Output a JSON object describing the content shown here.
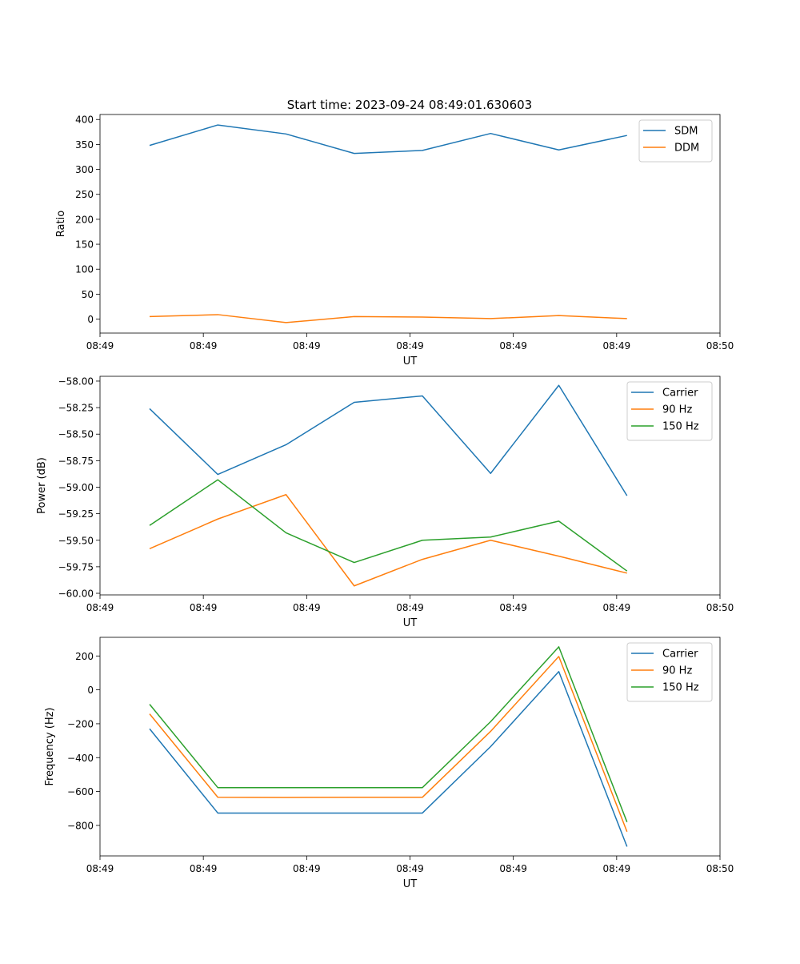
{
  "figure": {
    "title": "Start time: 2023-09-24 08:49:01.630603"
  },
  "chart_data": [
    {
      "type": "line",
      "xlabel": "UT",
      "ylabel": "Ratio",
      "xlim": [
        0,
        6
      ],
      "ylim": [
        -28,
        410
      ],
      "x": [
        0.48,
        1.14,
        1.8,
        2.46,
        3.12,
        3.78,
        4.44,
        5.1
      ],
      "xticks": [
        0,
        1,
        2,
        3,
        4,
        5,
        6
      ],
      "xtick_labels": [
        "08:49",
        "08:49",
        "08:49",
        "08:49",
        "08:49",
        "08:49",
        "08:50"
      ],
      "yticks": [
        0,
        50,
        100,
        150,
        200,
        250,
        300,
        350,
        400
      ],
      "ytick_labels": [
        "0",
        "50",
        "100",
        "150",
        "200",
        "250",
        "300",
        "350",
        "400"
      ],
      "legend_position": "top-right",
      "series": [
        {
          "name": "SDM",
          "color": "#1f77b4",
          "values": [
            348,
            389,
            371,
            332,
            338,
            372,
            339,
            368
          ]
        },
        {
          "name": "DDM",
          "color": "#ff7f0e",
          "values": [
            5,
            9,
            -7,
            5,
            4,
            1,
            7,
            1
          ]
        }
      ]
    },
    {
      "type": "line",
      "xlabel": "UT",
      "ylabel": "Power (dB)",
      "xlim": [
        0,
        6
      ],
      "ylim": [
        -60.015,
        -57.955
      ],
      "x": [
        0.48,
        1.14,
        1.8,
        2.46,
        3.12,
        3.78,
        4.44,
        5.1
      ],
      "xticks": [
        0,
        1,
        2,
        3,
        4,
        5,
        6
      ],
      "xtick_labels": [
        "08:49",
        "08:49",
        "08:49",
        "08:49",
        "08:49",
        "08:49",
        "08:50"
      ],
      "yticks": [
        -60.0,
        -59.75,
        -59.5,
        -59.25,
        -59.0,
        -58.75,
        -58.5,
        -58.25,
        -58.0
      ],
      "ytick_labels": [
        "−60.00",
        "−59.75",
        "−59.50",
        "−59.25",
        "−59.00",
        "−58.75",
        "−58.50",
        "−58.25",
        "−58.00"
      ],
      "legend_position": "top-right",
      "series": [
        {
          "name": "Carrier",
          "color": "#1f77b4",
          "values": [
            -58.26,
            -58.88,
            -58.6,
            -58.2,
            -58.14,
            -58.87,
            -58.04,
            -59.08
          ]
        },
        {
          "name": "90 Hz",
          "color": "#ff7f0e",
          "values": [
            -59.58,
            -59.3,
            -59.07,
            -59.93,
            -59.68,
            -59.5,
            -59.65,
            -59.81
          ]
        },
        {
          "name": "150 Hz",
          "color": "#2ca02c",
          "values": [
            -59.36,
            -58.93,
            -59.43,
            -59.71,
            -59.5,
            -59.47,
            -59.32,
            -59.79
          ]
        }
      ]
    },
    {
      "type": "line",
      "xlabel": "UT",
      "ylabel": "Frequency (Hz)",
      "xlim": [
        0,
        6
      ],
      "ylim": [
        -980,
        310
      ],
      "x": [
        0.48,
        1.14,
        1.8,
        2.46,
        3.12,
        3.78,
        4.44,
        5.1
      ],
      "xticks": [
        0,
        1,
        2,
        3,
        4,
        5,
        6
      ],
      "xtick_labels": [
        "08:49",
        "08:49",
        "08:49",
        "08:49",
        "08:49",
        "08:49",
        "08:50"
      ],
      "yticks": [
        -800,
        -600,
        -400,
        -200,
        0,
        200
      ],
      "ytick_labels": [
        "−800",
        "−600",
        "−400",
        "−200",
        "0",
        "200"
      ],
      "legend_position": "top-right",
      "series": [
        {
          "name": "Carrier",
          "color": "#1f77b4",
          "values": [
            -230,
            -727,
            -727,
            -727,
            -727,
            -335,
            108,
            -925
          ]
        },
        {
          "name": "90 Hz",
          "color": "#ff7f0e",
          "values": [
            -142,
            -634,
            -635,
            -634,
            -634,
            -245,
            197,
            -837
          ]
        },
        {
          "name": "150 Hz",
          "color": "#2ca02c",
          "values": [
            -85,
            -577,
            -577,
            -577,
            -577,
            -188,
            254,
            -780
          ]
        }
      ]
    }
  ]
}
